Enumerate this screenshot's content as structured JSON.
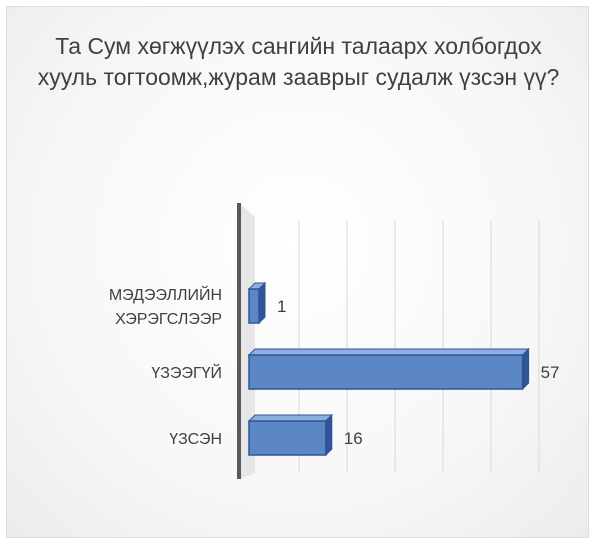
{
  "chart_data": {
    "type": "bar",
    "orientation": "horizontal",
    "title": "Та Сум хөгжүүлэх сангийн талаарх холбогдох хууль тогтоомж,журам зааврыг судалж үзсэн үү?",
    "categories": [
      "МЭДЭЭЛЛИЙН ХЭРЭГСЛЭЭР",
      "ҮЗЭЭГҮЙ",
      "ҮЗСЭН"
    ],
    "values": [
      1,
      57,
      16
    ],
    "data_labels": [
      "1",
      "57",
      "16"
    ],
    "xlim": [
      0,
      60
    ],
    "grid": "vertical",
    "legend": "none",
    "colors": {
      "bar_fill": "#5b87c5",
      "bar_edge": "#2f5597",
      "bar_top": "#8fb0de",
      "axis": "#595959",
      "grid": "#d9d9d9"
    }
  }
}
